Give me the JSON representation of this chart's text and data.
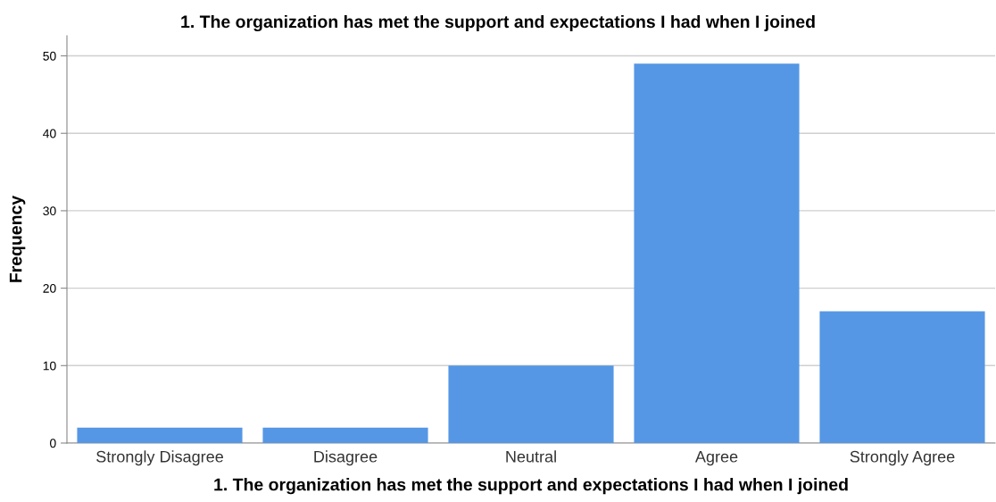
{
  "chart_data": {
    "type": "bar",
    "title": "1. The organization has met the support and expectations I had when I joined",
    "xlabel": "1. The organization has met the support and expectations I had when I joined",
    "ylabel": "Frequency",
    "categories": [
      "Strongly Disagree",
      "Disagree",
      "Neutral",
      "Agree",
      "Strongly Agree"
    ],
    "values": [
      2,
      2,
      10,
      49,
      17
    ],
    "color": "#5597e4",
    "ylim": [
      0,
      52.6
    ],
    "yticks": [
      0,
      10,
      20,
      30,
      40,
      50
    ],
    "grid": "y",
    "legend": false
  }
}
